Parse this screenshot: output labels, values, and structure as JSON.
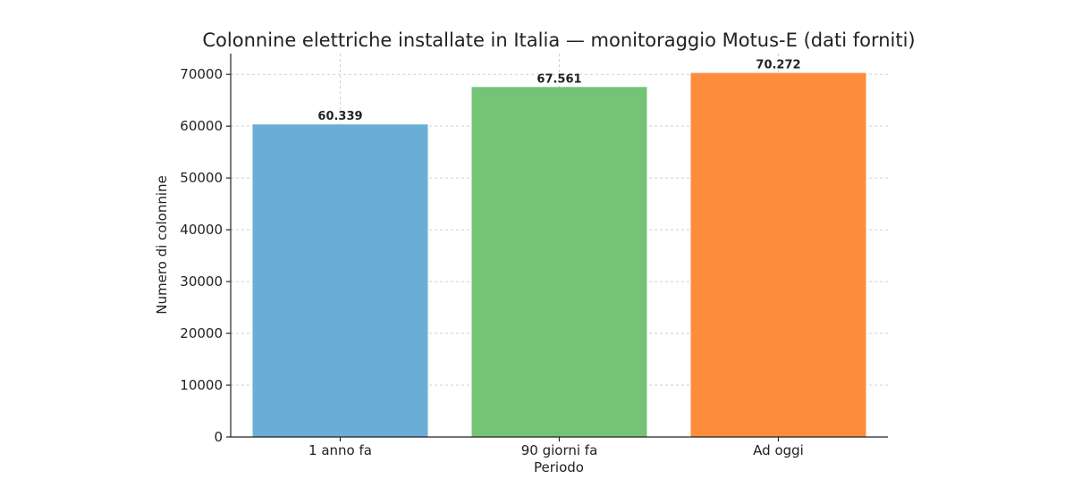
{
  "chart_data": {
    "type": "bar",
    "title": "Colonnine elettriche installate in Italia — monitoraggio Motus-E (dati forniti)",
    "xlabel": "Periodo",
    "ylabel": "Numero di colonnine",
    "categories": [
      "1 anno fa",
      "90 giorni fa",
      "Ad oggi"
    ],
    "values": [
      60339,
      67561,
      70272
    ],
    "data_labels": [
      "60.339",
      "67.561",
      "70.272"
    ],
    "colors": [
      "#6aaed6",
      "#74c476",
      "#fd8d3c"
    ],
    "ylim": [
      0,
      74000
    ],
    "yticks": [
      0,
      10000,
      20000,
      30000,
      40000,
      50000,
      60000,
      70000
    ],
    "ytick_labels": [
      "0",
      "10000",
      "20000",
      "30000",
      "40000",
      "50000",
      "60000",
      "70000"
    ],
    "grid": true
  }
}
